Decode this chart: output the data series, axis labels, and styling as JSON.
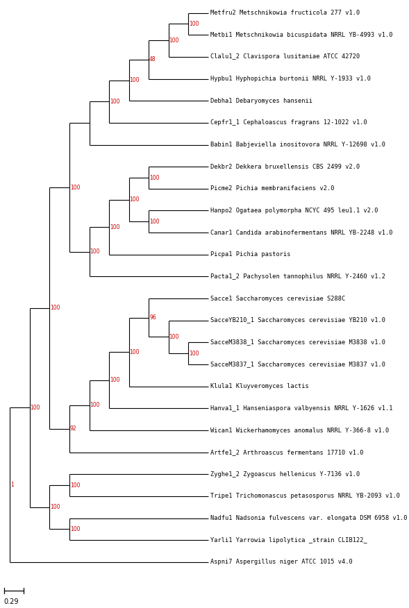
{
  "taxa": [
    "Metfru2 Metschnikowia fructicola 277 v1.0",
    "Metbi1 Metschnikowia bicuspidata NRRL YB-4993 v1.0",
    "Clalu1_2 Clavispora lusitaniae ATCC 42720",
    "Hypbu1 Hyphopichia burtonii NRRL Y-1933 v1.0",
    "Debha1 Debaryomyces hansenii",
    "Cepfr1_1 Cephaloascus fragrans 12-1022 v1.0",
    "Babin1 Babjeviella inositovora NRRL Y-12698 v1.0",
    "Dekbr2 Dekkera bruxellensis CBS 2499 v2.0",
    "Picme2 Pichia membranifaciens v2.0",
    "Hanpo2 Ogataea polymorpha NCYC 495 leu1.1 v2.0",
    "Canar1 Candida arabinofermentans NRRL YB-2248 v1.0",
    "Picpa1 Pichia pastoris",
    "Pacta1_2 Pachysolen tannophilus NRRL Y-2460 v1.2",
    "Sacce1 Saccharomyces cerevisiae S288C",
    "SacceYB210_1 Saccharomyces cerevisiae YB210 v1.0",
    "SacceM3838_1 Saccharomyces cerevisiae M3838 v1.0",
    "SacceM3837_1 Saccharomyces cerevisiae M3837 v1.0",
    "Klula1 Kluyveromyces lactis",
    "Hanva1_1 Hanseniaspora valbyensis NRRL Y-1626 v1.1",
    "Wican1 Wickerhamomyces anomalus NRRL Y-366-8 v1.0",
    "Artfe1_2 Arthroascus fermentans 17710 v1.0",
    "Zyghe1_2 Zygoascus hellenicus Y-7136 v1.0",
    "Tripe1 Trichomonascus petasosporus NRRL YB-2093 v1.0",
    "Nadfu1 Nadsonia fulvescens var. elongata DSM 6958 v1.0",
    "Yarli1 Yarrowia lipolytica _strain CLIB122_",
    "Aspni7 Aspergillus niger ATCC 1015 v4.0"
  ],
  "background_color": "#ffffff",
  "line_color": "#000000",
  "label_color": "#000000",
  "bootstrap_color": "#cc0000",
  "scale_bar_value": "0.29"
}
